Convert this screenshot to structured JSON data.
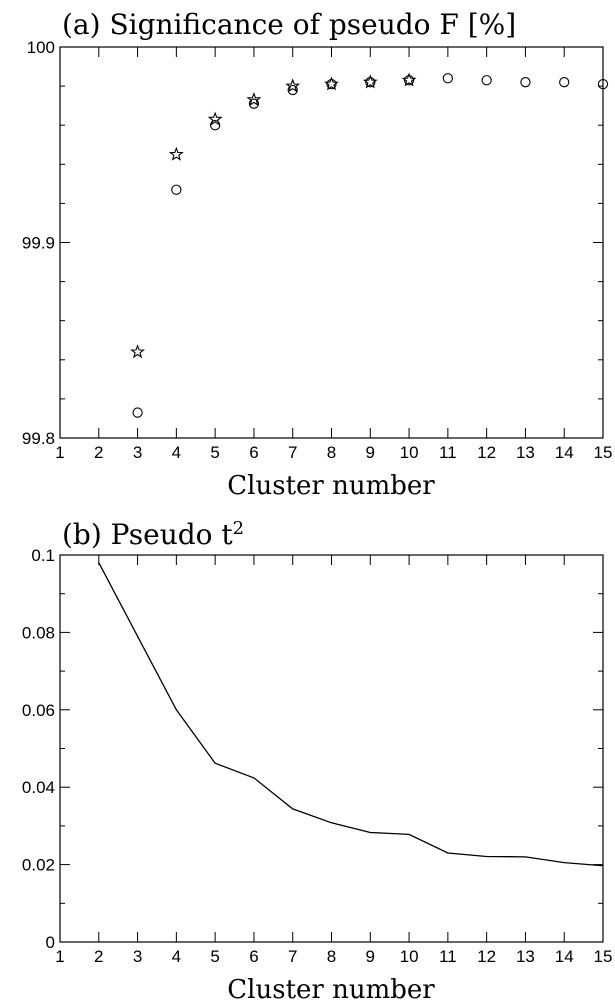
{
  "chart_data": [
    {
      "type": "scatter",
      "title": "(a) Significance of pseudo F [%]",
      "xlabel": "Cluster number",
      "ylabel": "",
      "xlim": [
        1,
        15
      ],
      "ylim": [
        99.8,
        100
      ],
      "xticks": [
        "1",
        "2",
        "3",
        "4",
        "5",
        "6",
        "7",
        "8",
        "9",
        "10",
        "11",
        "12",
        "13",
        "14",
        "15"
      ],
      "yticks": [
        {
          "value": 99.8,
          "label": "99.8"
        },
        {
          "value": 99.9,
          "label": "99.9"
        },
        {
          "value": 100,
          "label": "100"
        }
      ],
      "yminor": [
        99.82,
        99.84,
        99.86,
        99.88,
        99.92,
        99.94,
        99.96,
        99.98
      ],
      "grid": false,
      "series": [
        {
          "marker": "circle",
          "x": [
            3,
            4,
            5,
            6,
            7,
            8,
            9,
            10,
            11,
            12,
            13,
            14,
            15
          ],
          "y": [
            99.813,
            99.927,
            99.96,
            99.971,
            99.978,
            99.981,
            99.982,
            99.983,
            99.984,
            99.983,
            99.982,
            99.982,
            99.981
          ]
        },
        {
          "marker": "star",
          "x": [
            3,
            4,
            5,
            6,
            7,
            8,
            9,
            10
          ],
          "y": [
            99.844,
            99.945,
            99.963,
            99.973,
            99.98,
            99.981,
            99.982,
            99.983
          ]
        }
      ]
    },
    {
      "type": "line",
      "title_text": "(b) Pseudo t",
      "title_sup": "2",
      "xlabel": "Cluster number",
      "ylabel": "",
      "xlim": [
        1,
        15
      ],
      "ylim": [
        0,
        0.1
      ],
      "xticks": [
        "1",
        "2",
        "3",
        "4",
        "5",
        "6",
        "7",
        "8",
        "9",
        "10",
        "11",
        "12",
        "13",
        "14",
        "15"
      ],
      "yticks": [
        {
          "value": 0,
          "label": "0"
        },
        {
          "value": 0.02,
          "label": "0.02"
        },
        {
          "value": 0.04,
          "label": "0.04"
        },
        {
          "value": 0.06,
          "label": "0.06"
        },
        {
          "value": 0.08,
          "label": "0.08"
        },
        {
          "value": 0.1,
          "label": "0.1"
        }
      ],
      "yminor": [
        0.01,
        0.03,
        0.05,
        0.07,
        0.09
      ],
      "grid": false,
      "series": [
        {
          "x": [
            2,
            3,
            4,
            5,
            6,
            7,
            8,
            9,
            10,
            11,
            12,
            13,
            14,
            15
          ],
          "y": [
            0.098,
            0.079,
            0.06,
            0.0462,
            0.0424,
            0.0344,
            0.0308,
            0.0283,
            0.0278,
            0.023,
            0.0221,
            0.022,
            0.0205,
            0.0197
          ]
        }
      ]
    }
  ]
}
